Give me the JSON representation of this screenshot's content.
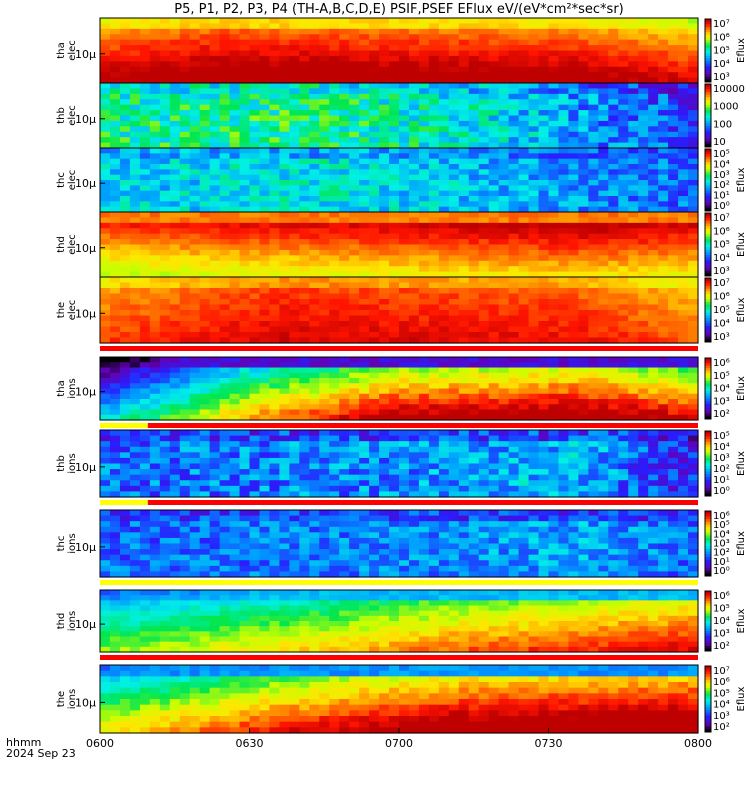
{
  "title": "P5, P1, P2, P3, P4 (TH-A,B,C,D,E) PSIF,PSEF EFlux eV/(eV*cm²*sec*sr)",
  "x_axis": {
    "label_line1": "hhmm",
    "label_line2": "2024 Sep 23",
    "ticks": [
      "0600",
      "0630",
      "0700",
      "0730",
      "0800"
    ]
  },
  "colors": {
    "background": "#ffffff",
    "flag_red": "#ff0000",
    "flag_yellow": "#ffff00",
    "no_data": "#000000"
  },
  "colorscale": "rainbow (black-purple-blue-cyan-green-yellow-orange-red)",
  "chart_data": {
    "type": "heatmap",
    "time_range": [
      "06:00",
      "08:00"
    ],
    "panels": [
      {
        "label_top": "tha",
        "label_bottom": "elec",
        "ytick": "10µ",
        "cbar_label": "Eflux",
        "cbar_ticks": [
          "10⁷",
          "10⁶",
          "10⁵",
          "10⁴",
          "10³"
        ],
        "profile": [
          [
            0,
            0.9
          ],
          [
            0.2,
            0.95
          ],
          [
            0.8,
            0.92
          ],
          [
            1,
            0.85
          ]
        ],
        "bright": 0.82,
        "fade": 0.25,
        "noise": 0.03,
        "flag": null
      },
      {
        "label_top": "thb",
        "label_bottom": "elec",
        "ytick": "10µ",
        "cbar_label": "",
        "cbar_ticks": [
          "10000",
          "1000",
          "100",
          "10"
        ],
        "profile": [
          [
            0,
            0.52
          ],
          [
            0.35,
            0.55
          ],
          [
            0.65,
            0.45
          ],
          [
            1,
            0.25
          ]
        ],
        "bright": 0.9,
        "fade": 0.02,
        "noise": 0.12,
        "flag": null
      },
      {
        "label_top": "thc",
        "label_bottom": "elec",
        "ytick": "10µ",
        "cbar_label": "Eflux",
        "cbar_ticks": [
          "10⁵",
          "10⁴",
          "10³",
          "10²",
          "10¹",
          "10⁰"
        ],
        "profile": [
          [
            0,
            0.42
          ],
          [
            0.4,
            0.46
          ],
          [
            1,
            0.3
          ]
        ],
        "bright": 0.42,
        "fade": 0.0,
        "noise": 0.1,
        "flag": null
      },
      {
        "label_top": "thd",
        "label_bottom": "elec",
        "ytick": "10µ",
        "cbar_label": "Eflux",
        "cbar_ticks": [
          "10⁷",
          "10⁶",
          "10⁵",
          "10⁴",
          "10³"
        ],
        "profile": [
          [
            0,
            0.82
          ],
          [
            0.2,
            0.85
          ],
          [
            0.8,
            0.92
          ],
          [
            1,
            0.88
          ]
        ],
        "bright": 0.9,
        "fade": -0.3,
        "noise": 0.03,
        "flag": null
      },
      {
        "label_top": "the",
        "label_bottom": "elec",
        "ytick": "10µ",
        "cbar_label": "Eflux",
        "cbar_ticks": [
          "10⁷",
          "10⁶",
          "10⁵",
          "10⁴",
          "10³"
        ],
        "profile": [
          [
            0,
            0.85
          ],
          [
            0.3,
            0.93
          ],
          [
            0.8,
            0.9
          ],
          [
            1,
            0.82
          ]
        ],
        "bright": 0.9,
        "fade": 0.1,
        "noise": 0.03,
        "flag": "red"
      },
      {
        "label_top": "tha",
        "label_bottom": "ions",
        "ytick": "10µ",
        "cbar_label": "Eflux",
        "cbar_ticks": [
          "10⁶",
          "10⁵",
          "10⁴",
          "10³",
          "10²"
        ],
        "profile": [
          [
            0,
            0.22
          ],
          [
            0.15,
            0.45
          ],
          [
            0.25,
            0.6
          ],
          [
            0.5,
            0.8
          ],
          [
            0.8,
            0.85
          ],
          [
            1,
            0.75
          ]
        ],
        "bright": 0.2,
        "fade": 0.45,
        "noise": 0.05,
        "flag": "red_yellow"
      },
      {
        "label_top": "thb",
        "label_bottom": "ions",
        "ytick": "10µ",
        "cbar_label": "Eflux",
        "cbar_ticks": [
          "10⁵",
          "10⁴",
          "10³",
          "10²",
          "10¹",
          "10⁰"
        ],
        "profile": [
          [
            0,
            0.3
          ],
          [
            0.5,
            0.35
          ],
          [
            0.8,
            0.4
          ],
          [
            1,
            0.2
          ]
        ],
        "bright": 0.3,
        "fade": 0.0,
        "noise": 0.12,
        "flag": "red_yellow"
      },
      {
        "label_top": "thc",
        "label_bottom": "ions",
        "ytick": "10µ",
        "cbar_label": "Eflux",
        "cbar_ticks": [
          "10⁶",
          "10⁵",
          "10⁴",
          "10³",
          "10²",
          "10¹",
          "10⁰"
        ],
        "profile": [
          [
            0,
            0.3
          ],
          [
            0.5,
            0.33
          ],
          [
            0.8,
            0.38
          ],
          [
            1,
            0.3
          ]
        ],
        "bright": 0.3,
        "fade": 0.0,
        "noise": 0.1,
        "flag": "yellow"
      },
      {
        "label_top": "thd",
        "label_bottom": "ions",
        "ytick": "10µ",
        "cbar_label": "Eflux",
        "cbar_ticks": [
          "10⁶",
          "10⁵",
          "10⁴",
          "10³",
          "10²"
        ],
        "profile": [
          [
            0,
            0.5
          ],
          [
            0.3,
            0.6
          ],
          [
            0.6,
            0.72
          ],
          [
            1,
            0.82
          ]
        ],
        "bright": 0.45,
        "fade": 0.3,
        "noise": 0.04,
        "flag": "red"
      },
      {
        "label_top": "the",
        "label_bottom": "ions",
        "ytick": "10µ",
        "cbar_label": "Eflux",
        "cbar_ticks": [
          "10⁷",
          "10⁶",
          "10⁵",
          "10⁴",
          "10³",
          "10²"
        ],
        "profile": [
          [
            0,
            0.55
          ],
          [
            0.3,
            0.75
          ],
          [
            0.6,
            0.88
          ],
          [
            1,
            0.92
          ]
        ],
        "bright": 0.4,
        "fade": 0.4,
        "noise": 0.04,
        "flag": null
      }
    ]
  }
}
